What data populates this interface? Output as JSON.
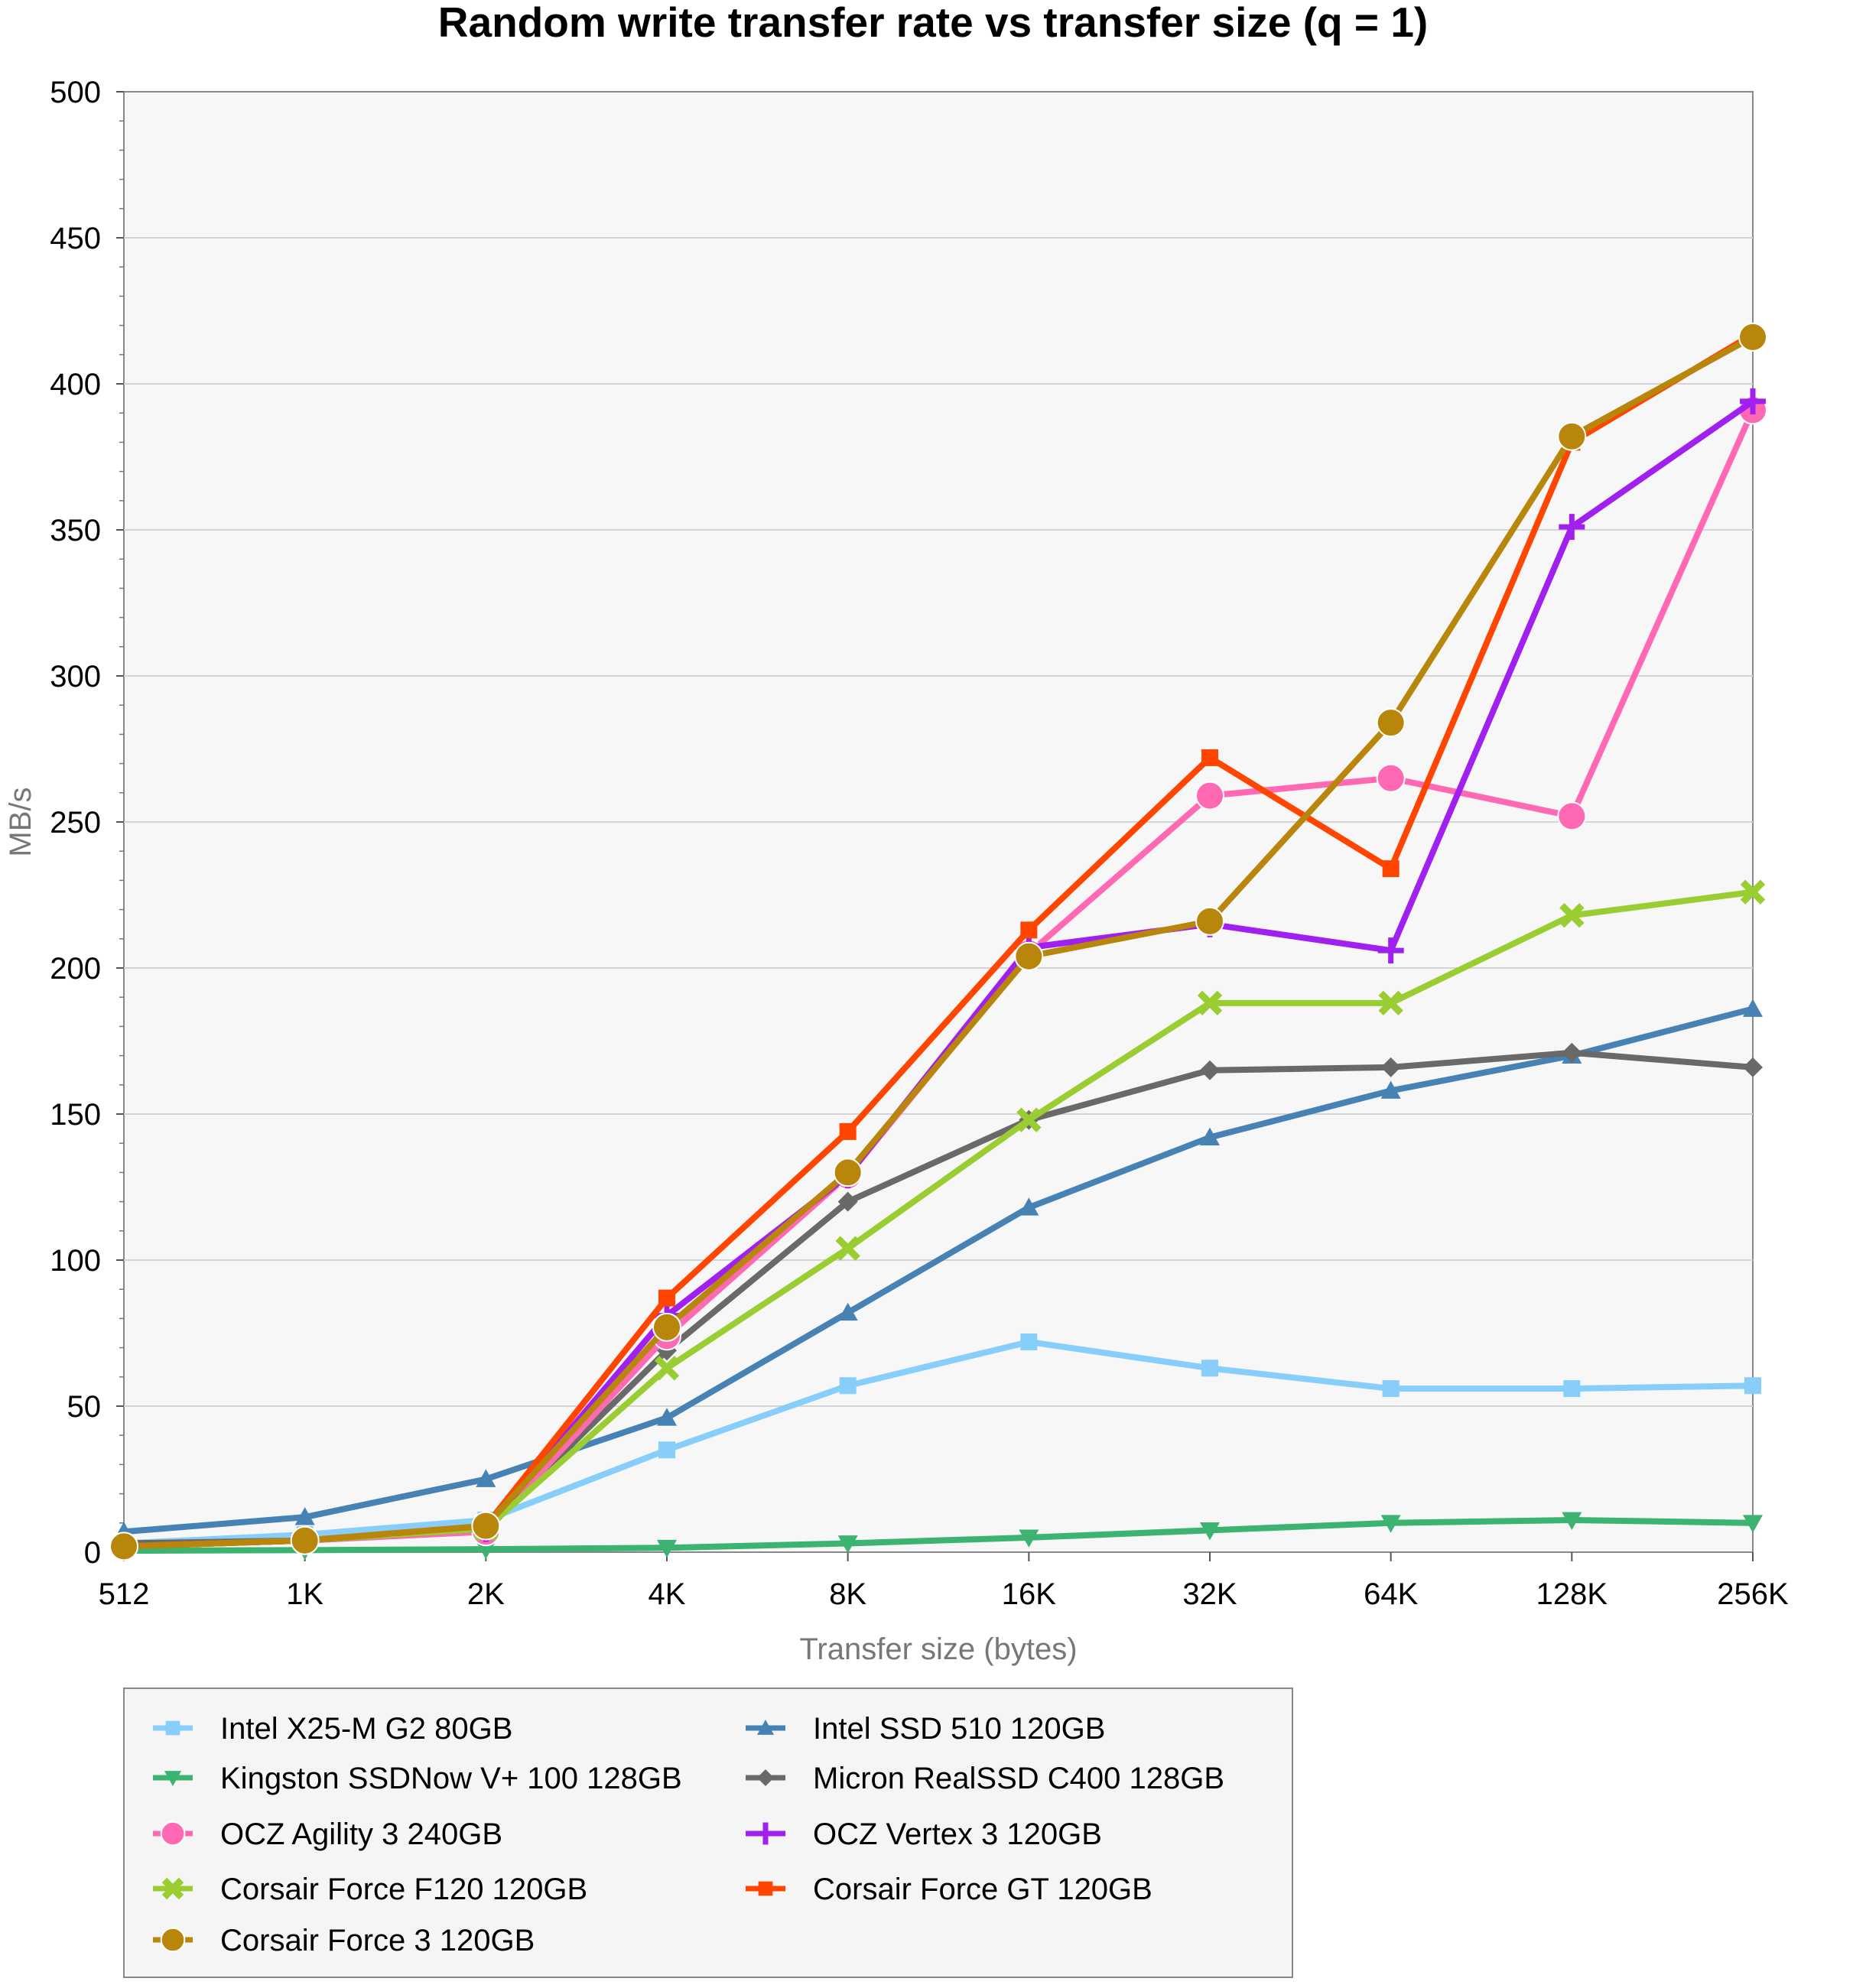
{
  "chart_data": {
    "type": "line",
    "title": "Random write transfer rate vs transfer size (q = 1)",
    "xlabel": "Transfer size (bytes)",
    "ylabel": "MB/s",
    "categories": [
      "512",
      "1K",
      "2K",
      "4K",
      "8K",
      "16K",
      "32K",
      "64K",
      "128K",
      "256K"
    ],
    "ylim": [
      0,
      500
    ],
    "yticks": [
      "0",
      "50",
      "100",
      "150",
      "200",
      "250",
      "300",
      "350",
      "400",
      "450",
      "500"
    ],
    "grid": true,
    "legend_position": "bottom-left",
    "series": [
      {
        "name": "Intel X25-M G2 80GB",
        "color": "#87cefa",
        "marker": "square",
        "values": [
          3,
          6,
          11,
          35,
          57,
          72,
          63,
          56,
          56,
          57
        ]
      },
      {
        "name": "Intel SSD 510 120GB",
        "color": "#4682b4",
        "marker": "triangle-up",
        "values": [
          7,
          12,
          25,
          46,
          82,
          118,
          142,
          158,
          170,
          186
        ]
      },
      {
        "name": "Kingston SSDNow V+ 100 128GB",
        "color": "#3cb371",
        "marker": "triangle-down",
        "values": [
          0.5,
          0.7,
          1,
          1.5,
          3,
          5,
          7.5,
          10,
          11,
          10
        ]
      },
      {
        "name": "Micron RealSSD C400 128GB",
        "color": "#696969",
        "marker": "diamond",
        "values": [
          3,
          4,
          8,
          69,
          120,
          148,
          165,
          166,
          171,
          166
        ]
      },
      {
        "name": "OCZ Agility 3 240GB",
        "color": "#ff69b4",
        "marker": "circle",
        "values": [
          2,
          4,
          7,
          74,
          129,
          205,
          259,
          265,
          252,
          391
        ]
      },
      {
        "name": "OCZ Vertex 3 120GB",
        "color": "#a020f0",
        "marker": "plus",
        "values": [
          2,
          4,
          8,
          81,
          129,
          207,
          215,
          206,
          351,
          394
        ]
      },
      {
        "name": "Corsair Force F120 120GB",
        "color": "#9acd32",
        "marker": "x",
        "values": [
          2,
          4,
          8,
          63,
          104,
          148,
          188,
          188,
          218,
          226
        ]
      },
      {
        "name": "Corsair Force GT 120GB",
        "color": "#ff4500",
        "marker": "square",
        "values": [
          2,
          4,
          9,
          87,
          144,
          213,
          272,
          234,
          380,
          417
        ]
      },
      {
        "name": "Corsair Force 3 120GB",
        "color": "#b8860b",
        "marker": "circle",
        "values": [
          2,
          4,
          9,
          77,
          130,
          204,
          216,
          284,
          382,
          416
        ]
      }
    ]
  }
}
